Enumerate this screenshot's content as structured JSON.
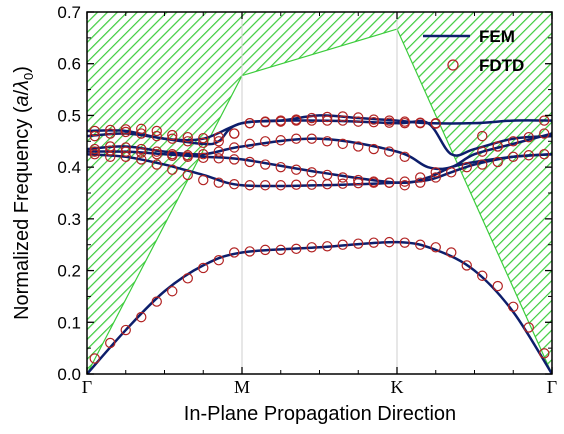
{
  "chart_data": {
    "type": "line",
    "title": "",
    "xlabel": "In-Plane Propagation Direction",
    "ylabel_main": "Normalized Frequency (",
    "ylabel_italic_a": "a",
    "ylabel_slash": "/",
    "ylabel_lambda": "λ",
    "ylabel_sub": "0",
    "ylabel_close": ")",
    "ylabel": "Normalized Frequency (a/λ0)",
    "xlim": [
      0,
      3
    ],
    "ylim": [
      0,
      0.7
    ],
    "x_ticks": [
      {
        "x": 0,
        "label": "Γ"
      },
      {
        "x": 1,
        "label": "M"
      },
      {
        "x": 2,
        "label": "K"
      },
      {
        "x": 3,
        "label": "Γ"
      }
    ],
    "y_ticks": [
      {
        "y": 0.0,
        "label": "0.0"
      },
      {
        "y": 0.1,
        "label": "0.1"
      },
      {
        "y": 0.2,
        "label": "0.2"
      },
      {
        "y": 0.3,
        "label": "0.3"
      },
      {
        "y": 0.4,
        "label": "0.4"
      },
      {
        "y": 0.5,
        "label": "0.5"
      },
      {
        "y": 0.6,
        "label": "0.6"
      },
      {
        "y": 0.7,
        "label": "0.7"
      }
    ],
    "grid": "vertical lines at M and K",
    "legend_position": "top-right",
    "colors": {
      "fem": "#0d1e6b",
      "fdtd": "#b22222",
      "hatch": "#3ccc3c"
    },
    "light_line_boundary": {
      "x": [
        0,
        1,
        1,
        2,
        3
      ],
      "y": [
        0,
        0.577,
        0.577,
        0.667,
        0
      ]
    },
    "series": [
      {
        "name": "FEM",
        "style": "line",
        "bands": [
          {
            "x": [
              0,
              0.25,
              0.5,
              0.75,
              1.0,
              1.5,
              2.0,
              2.25,
              2.5,
              2.75,
              3.0
            ],
            "y": [
              0,
              0.085,
              0.16,
              0.21,
              0.235,
              0.245,
              0.255,
              0.24,
              0.2,
              0.12,
              0
            ]
          },
          {
            "x": [
              0,
              0.25,
              0.5,
              0.75,
              1.0,
              1.5,
              2.0,
              2.2,
              2.35,
              2.5,
              2.75,
              3.0
            ],
            "y": [
              0.425,
              0.42,
              0.405,
              0.385,
              0.365,
              0.365,
              0.37,
              0.375,
              0.39,
              0.405,
              0.42,
              0.425
            ]
          },
          {
            "x": [
              0,
              0.25,
              0.5,
              0.75,
              1.0,
              1.5,
              2.0,
              2.2,
              2.35,
              2.5,
              2.75,
              3.0
            ],
            "y": [
              0.43,
              0.43,
              0.425,
              0.42,
              0.415,
              0.39,
              0.37,
              0.38,
              0.4,
              0.41,
              0.42,
              0.425
            ]
          },
          {
            "x": [
              0,
              0.25,
              0.5,
              0.75,
              1.0,
              1.5,
              2.0,
              2.2,
              2.35,
              2.5,
              2.75,
              3.0
            ],
            "y": [
              0.435,
              0.44,
              0.43,
              0.425,
              0.44,
              0.455,
              0.43,
              0.4,
              0.4,
              0.425,
              0.445,
              0.465
            ]
          },
          {
            "x": [
              0,
              0.25,
              0.5,
              0.75,
              0.85,
              1.0,
              1.5,
              2.0,
              2.2,
              2.35,
              2.5,
              2.75,
              3.0
            ],
            "y": [
              0.46,
              0.465,
              0.455,
              0.445,
              0.45,
              0.485,
              0.49,
              0.485,
              0.485,
              0.425,
              0.435,
              0.455,
              0.46
            ]
          },
          {
            "x": [
              0,
              0.25,
              0.5,
              0.75,
              1.0,
              1.25,
              1.5,
              1.75,
              2.0,
              2.2,
              2.5,
              2.75,
              3.0
            ],
            "y": [
              0.47,
              0.47,
              0.455,
              0.455,
              0.485,
              0.49,
              0.5,
              0.495,
              0.49,
              0.485,
              0.485,
              0.49,
              0.49
            ]
          }
        ]
      },
      {
        "name": "FDTD",
        "style": "markers",
        "bands": [
          {
            "x": [
              0.05,
              0.15,
              0.25,
              0.35,
              0.45,
              0.55,
              0.65,
              0.75,
              0.85,
              0.95,
              1.05,
              1.15,
              1.25,
              1.35,
              1.45,
              1.55,
              1.65,
              1.75,
              1.85,
              1.95,
              2.05,
              2.15,
              2.25,
              2.35,
              2.45,
              2.55,
              2.65,
              2.75,
              2.85,
              2.95
            ],
            "y": [
              0.03,
              0.06,
              0.085,
              0.11,
              0.14,
              0.16,
              0.185,
              0.205,
              0.22,
              0.235,
              0.237,
              0.24,
              0.24,
              0.242,
              0.245,
              0.247,
              0.25,
              0.252,
              0.254,
              0.255,
              0.254,
              0.25,
              0.245,
              0.235,
              0.21,
              0.19,
              0.17,
              0.13,
              0.09,
              0.04
            ]
          },
          {
            "x": [
              0.05,
              0.15,
              0.25,
              0.35,
              0.45,
              0.55,
              0.65,
              0.75,
              0.85,
              0.95,
              1.05,
              1.15,
              1.25,
              1.35,
              1.45,
              1.55,
              1.65,
              1.75,
              1.85,
              1.95,
              2.05,
              2.15,
              2.25,
              2.35,
              2.45,
              2.55,
              2.65,
              2.75,
              2.85,
              2.95
            ],
            "y": [
              0.425,
              0.42,
              0.42,
              0.415,
              0.405,
              0.395,
              0.385,
              0.375,
              0.37,
              0.367,
              0.365,
              0.365,
              0.365,
              0.366,
              0.366,
              0.367,
              0.368,
              0.369,
              0.37,
              0.37,
              0.365,
              0.37,
              0.38,
              0.39,
              0.4,
              0.405,
              0.41,
              0.42,
              0.423,
              0.425
            ]
          },
          {
            "x": [
              0.05,
              0.15,
              0.25,
              0.35,
              0.45,
              0.55,
              0.65,
              0.75,
              0.85,
              0.95,
              1.05,
              1.15,
              1.25,
              1.35,
              1.45,
              1.55,
              1.65,
              1.75,
              1.85,
              1.95,
              2.05,
              2.15,
              2.25
            ],
            "y": [
              0.43,
              0.432,
              0.43,
              0.428,
              0.425,
              0.422,
              0.42,
              0.418,
              0.417,
              0.415,
              0.41,
              0.405,
              0.4,
              0.395,
              0.39,
              0.385,
              0.38,
              0.375,
              0.372,
              0.37,
              0.372,
              0.38,
              0.39
            ]
          },
          {
            "x": [
              0.05,
              0.15,
              0.25,
              0.35,
              0.45,
              0.55,
              0.65,
              0.75,
              0.85,
              0.95,
              1.05,
              1.15,
              1.25,
              1.35,
              1.45,
              1.55,
              1.65,
              1.75,
              1.85,
              1.95,
              2.05,
              2.55,
              2.65,
              2.75,
              2.85,
              2.95
            ],
            "y": [
              0.435,
              0.44,
              0.438,
              0.435,
              0.43,
              0.425,
              0.423,
              0.425,
              0.43,
              0.438,
              0.445,
              0.45,
              0.452,
              0.455,
              0.455,
              0.45,
              0.445,
              0.44,
              0.435,
              0.43,
              0.42,
              0.43,
              0.44,
              0.45,
              0.458,
              0.465
            ]
          },
          {
            "x": [
              0.05,
              0.15,
              0.25,
              0.35,
              0.45,
              0.55,
              0.65,
              0.75,
              0.85,
              0.95,
              1.05,
              1.15,
              1.25,
              1.35,
              1.45,
              1.55,
              1.65,
              1.75,
              1.85,
              1.95,
              2.05,
              2.15,
              2.25,
              2.55,
              2.65
            ],
            "y": [
              0.46,
              0.465,
              0.468,
              0.465,
              0.46,
              0.455,
              0.45,
              0.447,
              0.45,
              0.465,
              0.485,
              0.487,
              0.488,
              0.49,
              0.49,
              0.49,
              0.49,
              0.488,
              0.487,
              0.486,
              0.485,
              0.485,
              0.484,
              0.46,
              0.44
            ]
          },
          {
            "x": [
              0.05,
              0.15,
              0.25,
              0.35,
              0.45,
              0.55,
              0.65,
              0.75,
              0.85,
              0.95,
              1.05,
              1.15,
              1.25,
              1.35,
              1.45,
              1.55,
              1.65,
              1.75,
              1.85,
              1.95,
              2.05,
              2.15,
              2.25,
              2.95
            ],
            "y": [
              0.47,
              0.472,
              0.473,
              0.474,
              0.47,
              0.462,
              0.458,
              0.456,
              0.458,
              0.465,
              0.485,
              0.488,
              0.49,
              0.492,
              0.495,
              0.497,
              0.498,
              0.496,
              0.492,
              0.49,
              0.488,
              0.486,
              0.485,
              0.49
            ]
          }
        ]
      }
    ]
  },
  "legend": {
    "fem_label": "FEM",
    "fdtd_label": "FDTD"
  }
}
